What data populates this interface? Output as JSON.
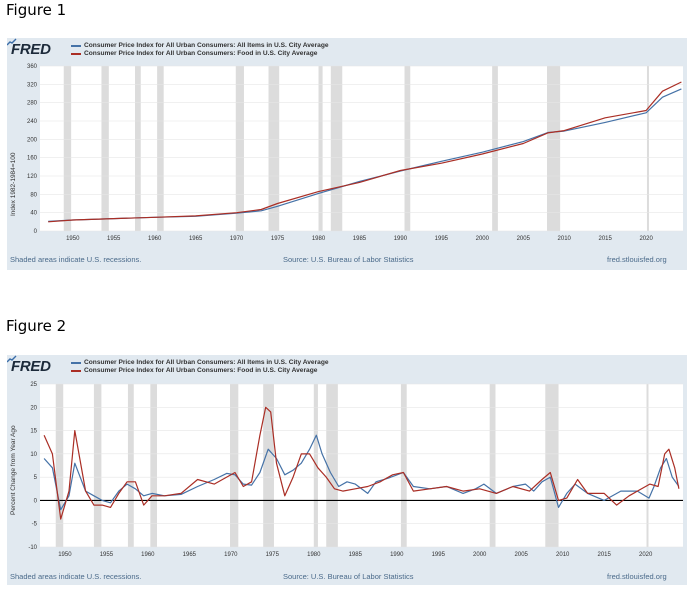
{
  "figures": [
    {
      "label": "Figure 1",
      "brand": "FRED",
      "legend": [
        {
          "text": "Consumer Price Index for All Urban Consumers: All Items in U.S. City Average",
          "color": "#4572a7"
        },
        {
          "text": "Consumer Price Index for All Urban Consumers: Food in U.S. City Average",
          "color": "#aa2e25"
        }
      ],
      "footer": {
        "left": "Shaded areas indicate U.S. recessions.",
        "center": "Source: U.S. Bureau of Labor Statistics",
        "right": "fred.stlouisfed.org"
      }
    },
    {
      "label": "Figure 2",
      "brand": "FRED",
      "legend": [
        {
          "text": "Consumer Price Index for All Urban Consumers: All Items in U.S. City Average",
          "color": "#4572a7"
        },
        {
          "text": "Consumer Price Index for All Urban Consumers: Food in U.S. City Average",
          "color": "#aa2e25"
        }
      ],
      "footer": {
        "left": "Shaded areas indicate U.S. recessions.",
        "center": "Source: U.S. Bureau of Labor Statistics",
        "right": "fred.stlouisfed.org"
      }
    }
  ],
  "chart_data": [
    {
      "type": "line",
      "title": "Figure 1",
      "xlabel": "",
      "ylabel": "Index 1982-1984=100",
      "xlim": [
        1946,
        2024.5
      ],
      "ylim": [
        0,
        360
      ],
      "yticks": [
        0,
        40,
        80,
        120,
        160,
        200,
        240,
        280,
        320,
        360
      ],
      "xticks": [
        1950,
        1955,
        1960,
        1965,
        1970,
        1975,
        1980,
        1985,
        1990,
        1995,
        2000,
        2005,
        2010,
        2015,
        2020
      ],
      "recessions": [
        [
          1948.9,
          1949.8
        ],
        [
          1953.5,
          1954.4
        ],
        [
          1957.6,
          1958.3
        ],
        [
          1960.3,
          1961.1
        ],
        [
          1969.9,
          1970.9
        ],
        [
          1973.9,
          1975.2
        ],
        [
          1980.0,
          1980.5
        ],
        [
          1981.5,
          1982.9
        ],
        [
          1990.5,
          1991.2
        ],
        [
          2001.2,
          2001.9
        ],
        [
          2007.9,
          2009.5
        ],
        [
          2020.1,
          2020.3
        ]
      ],
      "series": [
        {
          "name": "Consumer Price Index for All Urban Consumers: All Items in U.S. City Average",
          "color": "#4572a7",
          "x": [
            1947,
            1950,
            1955,
            1960,
            1965,
            1970,
            1973,
            1975,
            1980,
            1985,
            1990,
            1995,
            2000,
            2005,
            2008,
            2010,
            2015,
            2020,
            2022,
            2024.3
          ],
          "y": [
            21,
            24,
            27,
            30,
            32,
            39,
            44,
            54,
            82,
            108,
            131,
            152,
            172,
            195,
            215,
            218,
            237,
            258,
            292,
            310
          ]
        },
        {
          "name": "Consumer Price Index for All Urban Consumers: Food in U.S. City Average",
          "color": "#aa2e25",
          "x": [
            1947,
            1950,
            1955,
            1960,
            1965,
            1970,
            1973,
            1975,
            1980,
            1985,
            1990,
            1995,
            2000,
            2005,
            2008,
            2010,
            2015,
            2020,
            2022,
            2024.3
          ],
          "y": [
            20,
            24,
            27,
            30,
            33,
            40,
            47,
            60,
            86,
            106,
            132,
            148,
            168,
            191,
            214,
            219,
            247,
            263,
            305,
            325
          ]
        }
      ]
    },
    {
      "type": "line",
      "title": "Figure 2",
      "xlabel": "",
      "ylabel": "Percent Change from Year Ago",
      "xlim": [
        1947,
        2024.5
      ],
      "ylim": [
        -10,
        25
      ],
      "yticks": [
        -10,
        -5,
        0,
        5,
        10,
        15,
        20,
        25
      ],
      "xticks": [
        1950,
        1955,
        1960,
        1965,
        1970,
        1975,
        1980,
        1985,
        1990,
        1995,
        2000,
        2005,
        2010,
        2015,
        2020
      ],
      "zero_line": 0,
      "recessions": [
        [
          1948.9,
          1949.8
        ],
        [
          1953.5,
          1954.4
        ],
        [
          1957.6,
          1958.3
        ],
        [
          1960.3,
          1961.1
        ],
        [
          1969.9,
          1970.9
        ],
        [
          1973.9,
          1975.2
        ],
        [
          1980.0,
          1980.5
        ],
        [
          1981.5,
          1982.9
        ],
        [
          1990.5,
          1991.2
        ],
        [
          2001.2,
          2001.9
        ],
        [
          2007.9,
          2009.5
        ],
        [
          2020.1,
          2020.3
        ]
      ],
      "series": [
        {
          "name": "Consumer Price Index for All Urban Consumers: All Items in U.S. City Average",
          "color": "#4572a7",
          "x": [
            1947.5,
            1948.5,
            1949.5,
            1950.5,
            1951.2,
            1952.5,
            1953.5,
            1954.5,
            1955.5,
            1956.5,
            1957.5,
            1958.5,
            1959.5,
            1960.5,
            1962,
            1964,
            1966,
            1968,
            1969.5,
            1970.5,
            1971.5,
            1972.5,
            1973.5,
            1974.5,
            1975.5,
            1976.5,
            1977.5,
            1978.5,
            1979.5,
            1980.3,
            1981,
            1982,
            1983,
            1984,
            1985,
            1986.5,
            1987.5,
            1989,
            1990.8,
            1992,
            1994,
            1996,
            1998,
            1999.5,
            2000.5,
            2002,
            2004,
            2005.5,
            2006.5,
            2007.5,
            2008.5,
            2009.5,
            2010.5,
            2011.5,
            2013,
            2015,
            2017,
            2019,
            2020.4,
            2021,
            2021.8,
            2022.5,
            2023.2,
            2024
          ],
          "y": [
            9,
            7,
            -2,
            1,
            8,
            2,
            1,
            0,
            -0.5,
            2,
            3.5,
            2.5,
            1,
            1.5,
            1,
            1.3,
            3,
            4.5,
            5.8,
            5.5,
            3.5,
            3.3,
            6,
            11,
            9,
            5.5,
            6.5,
            8,
            11,
            14,
            10,
            6,
            3,
            4,
            3.5,
            1.5,
            4,
            4.8,
            6,
            3,
            2.5,
            3,
            1.5,
            2.5,
            3.5,
            1.5,
            3,
            3.5,
            2,
            4,
            5,
            -1.5,
            1.5,
            3.5,
            1.5,
            0,
            2,
            2,
            0.5,
            3,
            7,
            9,
            5,
            3
          ]
        },
        {
          "name": "Consumer Price Index for All Urban Consumers: Food in U.S. City Average",
          "color": "#aa2e25",
          "x": [
            1947.5,
            1948.5,
            1949.5,
            1950.5,
            1951.2,
            1952.5,
            1953.5,
            1954.5,
            1955.5,
            1956.5,
            1957.5,
            1958.5,
            1959.5,
            1960.5,
            1962,
            1964,
            1966,
            1968,
            1969.5,
            1970.5,
            1971.5,
            1972.5,
            1973.5,
            1974.2,
            1974.8,
            1975.5,
            1976.5,
            1977.5,
            1978.5,
            1979.5,
            1980.5,
            1981.5,
            1982.5,
            1983.5,
            1985,
            1986.5,
            1988,
            1989.5,
            1990.8,
            1992,
            1994,
            1996,
            1998,
            2000,
            2002,
            2004,
            2006,
            2007.5,
            2008.5,
            2009.5,
            2010.5,
            2011.8,
            2013,
            2015,
            2016.5,
            2018,
            2020.5,
            2021.5,
            2022.3,
            2022.8,
            2023.5,
            2024
          ],
          "y": [
            14,
            10,
            -4,
            2,
            15,
            2,
            -1,
            -1,
            -1.5,
            1.5,
            4,
            4,
            -1,
            1,
            1,
            1.5,
            4.5,
            3.5,
            5,
            6,
            3,
            4,
            14,
            20,
            19,
            8,
            1,
            5,
            10,
            10,
            7,
            5,
            2.5,
            2,
            2.5,
            3,
            4,
            5.5,
            6,
            2,
            2.5,
            3,
            2,
            2.5,
            1.5,
            3,
            2,
            4.5,
            6,
            0,
            0.5,
            4.5,
            1.5,
            1.5,
            -1,
            1,
            3.5,
            3,
            10,
            11,
            7,
            2.5
          ]
        }
      ]
    }
  ]
}
